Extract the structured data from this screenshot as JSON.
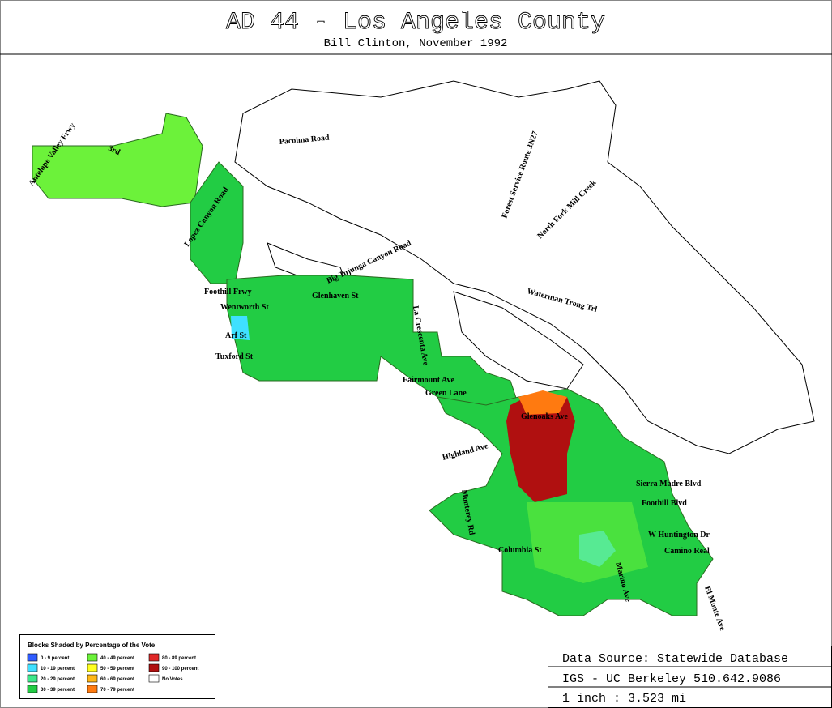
{
  "header": {
    "title": "AD 44 - Los Angeles County",
    "subtitle": "Bill Clinton, November 1992"
  },
  "legend": {
    "title": "Blocks Shaded by Percentage of the Vote",
    "items": [
      {
        "label": "0 - 9 percent",
        "color": "#2f5cff"
      },
      {
        "label": "10 - 19 percent",
        "color": "#3fe0ff"
      },
      {
        "label": "20 - 29 percent",
        "color": "#3ce88a"
      },
      {
        "label": "30 - 39 percent",
        "color": "#22cc44"
      },
      {
        "label": "40 - 49 percent",
        "color": "#6cf23a"
      },
      {
        "label": "50 - 59 percent",
        "color": "#ffff20"
      },
      {
        "label": "60 - 69 percent",
        "color": "#ffb818"
      },
      {
        "label": "70 - 79 percent",
        "color": "#ff7a10"
      },
      {
        "label": "80 - 89 percent",
        "color": "#e02828"
      },
      {
        "label": "90 - 100 percent",
        "color": "#b01010"
      },
      {
        "label": "No Votes",
        "color": "#ffffff"
      }
    ]
  },
  "streets": [
    "Antelope Valley Frwy",
    "3rd",
    "Pacoima Road",
    "Lopez Canyon Road",
    "Foothill Frwy",
    "Wentworth St",
    "Arf St",
    "Tuxford St",
    "Glenhaven St",
    "Big Tujunga Canyon Road",
    "Forest Service Route 3N27",
    "North Fork Mill Creek",
    "Waterman Trong Trl",
    "La Crescenta Ave",
    "Fairmount Ave",
    "Green Lane",
    "Highland Ave",
    "Glenoaks Ave",
    "Sierra Madre Blvd",
    "Foothill Blvd",
    "W Huntington Dr",
    "Camino Real",
    "Columbia St",
    "El Monte Ave",
    "Marino Ave",
    "Monterey Rd"
  ],
  "source": {
    "line1": "Data Source: Statewide Database",
    "line2": "IGS - UC Berkeley 510.642.9086",
    "line3": "1 inch : 3.523 mi"
  }
}
